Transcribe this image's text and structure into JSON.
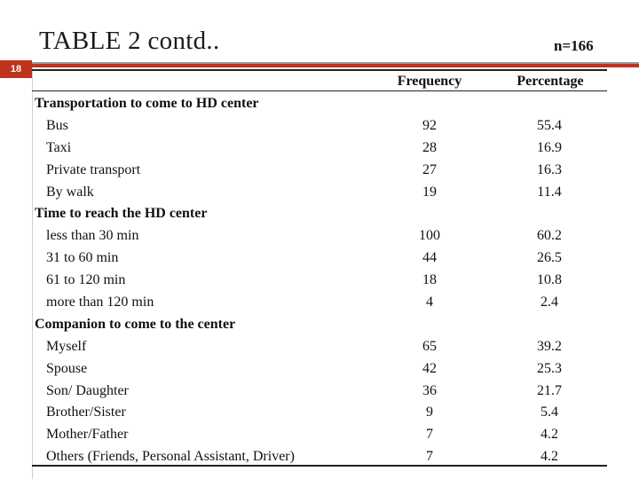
{
  "slide": {
    "title": "TABLE 2 contd..",
    "sample_size": "n=166",
    "page_number": "18"
  },
  "table": {
    "headers": {
      "frequency": "Frequency",
      "percentage": "Percentage"
    },
    "rows": [
      {
        "label": "Transportation to come to HD center",
        "section": true,
        "frequency": "",
        "percentage": ""
      },
      {
        "label": "Bus",
        "section": false,
        "frequency": "92",
        "percentage": "55.4"
      },
      {
        "label": "Taxi",
        "section": false,
        "frequency": "28",
        "percentage": "16.9"
      },
      {
        "label": "Private transport",
        "section": false,
        "frequency": "27",
        "percentage": "16.3"
      },
      {
        "label": "By walk",
        "section": false,
        "frequency": "19",
        "percentage": "11.4"
      },
      {
        "label": "Time to reach the HD center",
        "section": true,
        "frequency": "",
        "percentage": ""
      },
      {
        "label": "less than 30 min",
        "section": false,
        "frequency": "100",
        "percentage": "60.2"
      },
      {
        "label": "31 to 60 min",
        "section": false,
        "frequency": "44",
        "percentage": "26.5"
      },
      {
        "label": "61 to 120 min",
        "section": false,
        "frequency": "18",
        "percentage": "10.8"
      },
      {
        "label": "more than 120 min",
        "section": false,
        "frequency": "4",
        "percentage": "2.4"
      },
      {
        "label": "Companion to come to the center",
        "section": true,
        "frequency": "",
        "percentage": ""
      },
      {
        "label": "Myself",
        "section": false,
        "frequency": "65",
        "percentage": "39.2"
      },
      {
        "label": "Spouse",
        "section": false,
        "frequency": "42",
        "percentage": "25.3"
      },
      {
        "label": "Son/ Daughter",
        "section": false,
        "frequency": "36",
        "percentage": "21.7"
      },
      {
        "label": "Brother/Sister",
        "section": false,
        "frequency": "9",
        "percentage": "5.4"
      },
      {
        "label": "Mother/Father",
        "section": false,
        "frequency": "7",
        "percentage": "4.2"
      },
      {
        "label": "Others (Friends, Personal Assistant, Driver)",
        "section": false,
        "frequency": "7",
        "percentage": "4.2"
      }
    ]
  },
  "colors": {
    "accent": "#c0311e",
    "rule": "#9a9a9a"
  }
}
